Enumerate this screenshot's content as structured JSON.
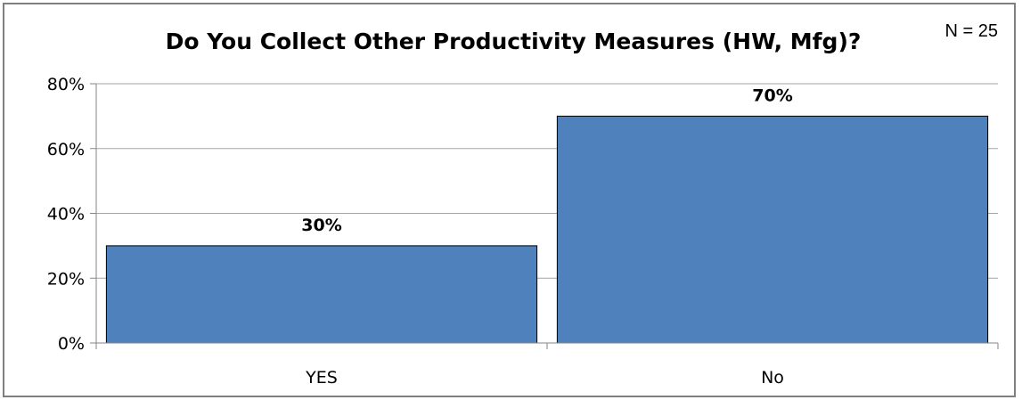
{
  "chart_data": {
    "type": "bar",
    "title": "Do You Collect Other Productivity Measures (HW, Mfg)?",
    "annotation": "N = 25",
    "categories": [
      "YES",
      "No"
    ],
    "values": [
      30,
      70
    ],
    "data_labels": [
      "30%",
      "70%"
    ],
    "ylim": [
      0,
      80
    ],
    "yticks": [
      0,
      20,
      40,
      60,
      80
    ],
    "ytick_labels": [
      "0%",
      "20%",
      "40%",
      "60%",
      "80%"
    ],
    "xlabel": "",
    "ylabel": "",
    "grid": true,
    "legend": "none",
    "bar_color": "#4f81bd",
    "bar_edge_color": "#000000",
    "grid_color": "#a6a6a6",
    "axis_color": "#868686"
  }
}
